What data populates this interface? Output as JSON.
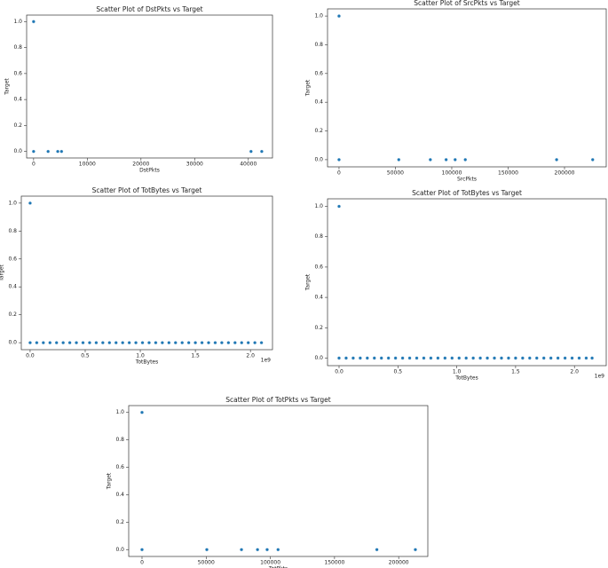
{
  "chart_data": [
    {
      "type": "scatter",
      "title": "Scatter Plot of DstPkts vs Target",
      "x_label": "DstPkts",
      "y_label": "Target",
      "color": "#1f77b4",
      "x": [
        0,
        0,
        2700,
        4500,
        5200,
        40500,
        42500
      ],
      "values": [
        1,
        0,
        0,
        0,
        0,
        0,
        0
      ],
      "xlim": [
        -1300,
        44500
      ],
      "xticks": [
        0,
        10000,
        20000,
        30000,
        40000
      ],
      "ylim": [
        -0.05,
        1.05
      ],
      "yticks": [
        {
          "value": 0,
          "label": "0.0"
        },
        {
          "value": 0.2,
          "label": "0.2"
        },
        {
          "value": 0.4,
          "label": "0.4"
        },
        {
          "value": 0.6,
          "label": "0.6"
        },
        {
          "value": 0.8,
          "label": "0.8"
        },
        {
          "value": 1,
          "label": "1.0"
        }
      ]
    },
    {
      "type": "scatter",
      "title": "Scatter Plot of SrcPkts vs Target",
      "x_label": "SrcPkts",
      "y_label": "Target",
      "color": "#1f77b4",
      "x": [
        0,
        0,
        53000,
        81000,
        95000,
        103000,
        112000,
        193000,
        225000
      ],
      "values": [
        1,
        0,
        0,
        0,
        0,
        0,
        0,
        0,
        0
      ],
      "xlim": [
        -10200,
        237000
      ],
      "xticks": [
        0,
        50000,
        100000,
        150000,
        200000
      ],
      "ylim": [
        -0.05,
        1.05
      ],
      "yticks": [
        {
          "value": 0,
          "label": "0.0"
        },
        {
          "value": 0.2,
          "label": "0.2"
        },
        {
          "value": 0.4,
          "label": "0.4"
        },
        {
          "value": 0.6,
          "label": "0.6"
        },
        {
          "value": 0.8,
          "label": "0.8"
        },
        {
          "value": 1,
          "label": "1.0"
        }
      ]
    },
    {
      "type": "scatter",
      "title": "Scatter Plot of TotBytes vs Target",
      "x_label": "TotBytes",
      "y_label": "Target",
      "x_offset_label": "1e9",
      "color": "#1f77b4",
      "x": [
        0,
        0,
        0.06,
        0.12,
        0.18,
        0.24,
        0.3,
        0.36,
        0.42,
        0.48,
        0.54,
        0.6,
        0.66,
        0.72,
        0.78,
        0.84,
        0.9,
        0.96,
        1.02,
        1.08,
        1.14,
        1.2,
        1.26,
        1.32,
        1.38,
        1.44,
        1.5,
        1.56,
        1.62,
        1.68,
        1.74,
        1.8,
        1.86,
        1.92,
        1.98,
        2.04,
        2.1
      ],
      "values": [
        1,
        0,
        0,
        0,
        0,
        0,
        0,
        0,
        0,
        0,
        0,
        0,
        0,
        0,
        0,
        0,
        0,
        0,
        0,
        0,
        0,
        0,
        0,
        0,
        0,
        0,
        0,
        0,
        0,
        0,
        0,
        0,
        0,
        0,
        0,
        0,
        0
      ],
      "xlim": [
        -0.08,
        2.2
      ],
      "xticks": [
        {
          "value": 0,
          "label": "0.0"
        },
        {
          "value": 0.5,
          "label": "0.5"
        },
        {
          "value": 1,
          "label": "1.0"
        },
        {
          "value": 1.5,
          "label": "1.5"
        },
        {
          "value": 2,
          "label": "2.0"
        }
      ],
      "ylim": [
        -0.05,
        1.05
      ],
      "yticks": [
        {
          "value": 0,
          "label": "0.0"
        },
        {
          "value": 0.2,
          "label": "0.2"
        },
        {
          "value": 0.4,
          "label": "0.4"
        },
        {
          "value": 0.6,
          "label": "0.6"
        },
        {
          "value": 0.8,
          "label": "0.8"
        },
        {
          "value": 1,
          "label": "1.0"
        }
      ]
    },
    {
      "type": "scatter",
      "title": "Scatter Plot of TotBytes vs Target",
      "x_label": "TotBytes",
      "y_label": "Target",
      "x_offset_label": "1e9",
      "color": "#1f77b4",
      "x": [
        0,
        0,
        0.06,
        0.12,
        0.18,
        0.24,
        0.3,
        0.36,
        0.42,
        0.48,
        0.54,
        0.6,
        0.66,
        0.72,
        0.78,
        0.84,
        0.9,
        0.96,
        1.02,
        1.08,
        1.14,
        1.2,
        1.26,
        1.32,
        1.38,
        1.44,
        1.5,
        1.56,
        1.62,
        1.68,
        1.74,
        1.8,
        1.86,
        1.92,
        1.98,
        2.04,
        2.1,
        2.15
      ],
      "values": [
        1,
        0,
        0,
        0,
        0,
        0,
        0,
        0,
        0,
        0,
        0,
        0,
        0,
        0,
        0,
        0,
        0,
        0,
        0,
        0,
        0,
        0,
        0,
        0,
        0,
        0,
        0,
        0,
        0,
        0,
        0,
        0,
        0,
        0,
        0,
        0,
        0,
        0
      ],
      "xlim": [
        -0.098,
        2.27
      ],
      "xticks": [
        {
          "value": 0,
          "label": "0.0"
        },
        {
          "value": 0.5,
          "label": "0.5"
        },
        {
          "value": 1,
          "label": "1.0"
        },
        {
          "value": 1.5,
          "label": "1.5"
        },
        {
          "value": 2,
          "label": "2.0"
        }
      ],
      "ylim": [
        -0.05,
        1.05
      ],
      "yticks": [
        {
          "value": 0,
          "label": "0.0"
        },
        {
          "value": 0.2,
          "label": "0.2"
        },
        {
          "value": 0.4,
          "label": "0.4"
        },
        {
          "value": 0.6,
          "label": "0.6"
        },
        {
          "value": 0.8,
          "label": "0.8"
        },
        {
          "value": 1,
          "label": "1.0"
        }
      ]
    },
    {
      "type": "scatter",
      "title": "Scatter Plot of TotPkts vs Target",
      "x_label": "TotPkts",
      "y_label": "Target",
      "color": "#1f77b4",
      "x": [
        0,
        0,
        50500,
        77500,
        90000,
        97500,
        106000,
        183000,
        213000
      ],
      "values": [
        1,
        0,
        0,
        0,
        0,
        0,
        0,
        0,
        0
      ],
      "xlim": [
        -10370,
        222700
      ],
      "xticks": [
        0,
        50000,
        100000,
        150000,
        200000
      ],
      "ylim": [
        -0.05,
        1.05
      ],
      "yticks": [
        {
          "value": 0,
          "label": "0.0"
        },
        {
          "value": 0.2,
          "label": "0.2"
        },
        {
          "value": 0.4,
          "label": "0.4"
        },
        {
          "value": 0.6,
          "label": "0.6"
        },
        {
          "value": 0.8,
          "label": "0.8"
        },
        {
          "value": 1,
          "label": "1.0"
        }
      ]
    }
  ]
}
